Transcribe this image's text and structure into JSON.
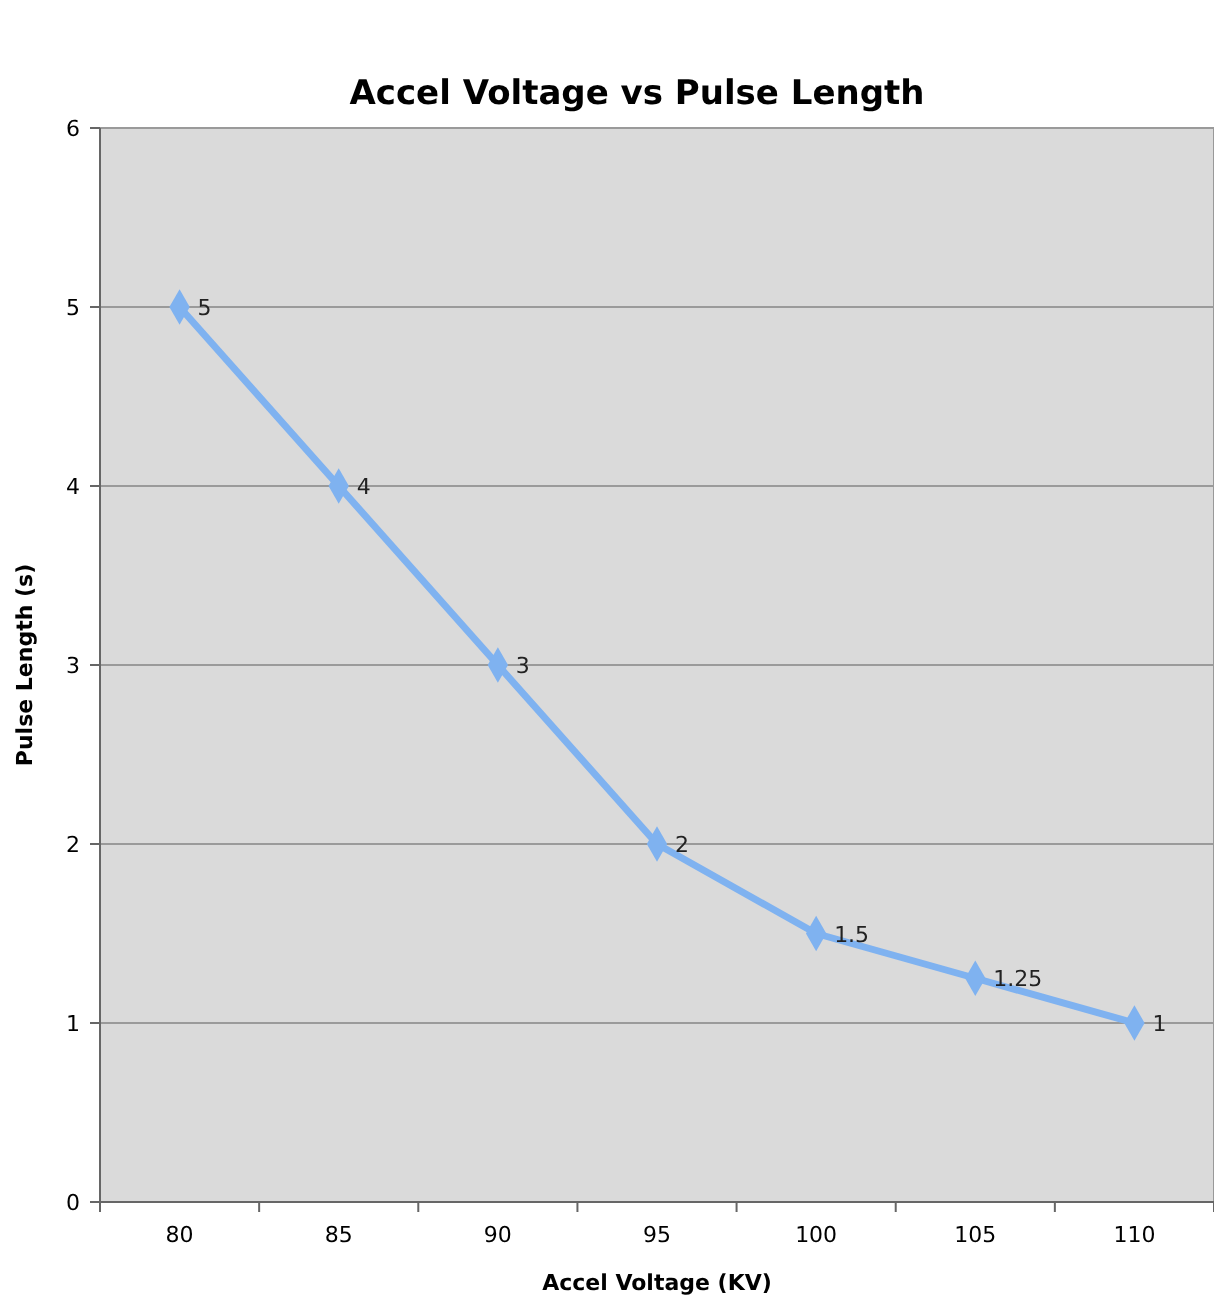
{
  "chart_data": {
    "type": "line",
    "title": "Accel Voltage vs Pulse Length",
    "xlabel": "Accel Voltage (KV)",
    "ylabel": "Pulse Length (s)",
    "categories": [
      "80",
      "85",
      "90",
      "95",
      "100",
      "105",
      "110"
    ],
    "series": [
      {
        "color": "#7fb2f0",
        "values": [
          5,
          4,
          3,
          2,
          1.5,
          1.25,
          1
        ]
      }
    ],
    "ylim": [
      0,
      6
    ],
    "yticks": [
      0,
      1,
      2,
      3,
      4,
      5,
      6
    ],
    "grid": "y",
    "marker": "diamond",
    "line_style": "solid",
    "data_labels": true
  }
}
